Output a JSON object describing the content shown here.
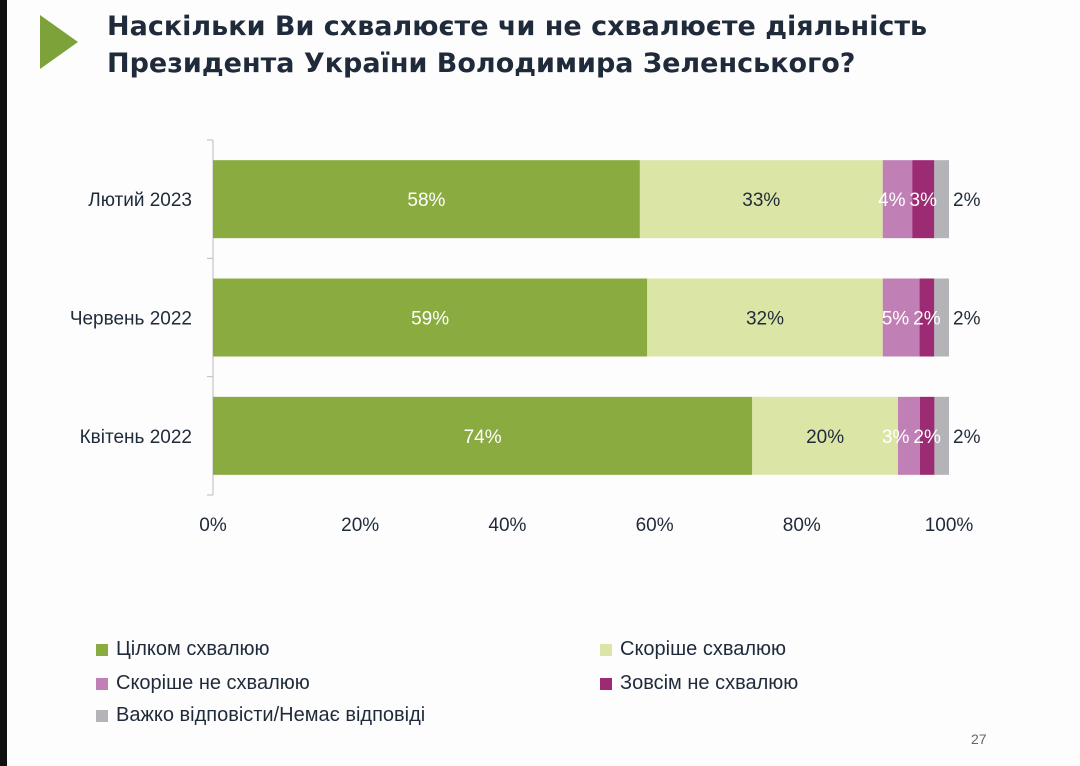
{
  "title_line1": "Наскільки Ви схвалюєте чи не схвалюєте діяльність",
  "title_line2": "Президента України Володимира Зеленського?",
  "page_number": "27",
  "chart_data": {
    "type": "bar",
    "orientation": "horizontal",
    "stacked": true,
    "categories": [
      "Лютий 2023",
      "Червень 2022",
      "Квітень 2022"
    ],
    "series": [
      {
        "name": "Цілком схвалюю",
        "color": "#8aab3f",
        "label_color": "#ffffff",
        "values": [
          58,
          59,
          74
        ]
      },
      {
        "name": "Скоріше схвалюю",
        "color": "#dbe6a6",
        "label_color": "#1f2a3a",
        "values": [
          33,
          32,
          20
        ]
      },
      {
        "name": "Скоріше не схвалюю",
        "color": "#c080b5",
        "label_color": "#ffffff",
        "values": [
          4,
          5,
          3
        ]
      },
      {
        "name": "Зовсім не схвалюю",
        "color": "#9b2c74",
        "label_color": "#ffffff",
        "values": [
          3,
          2,
          2
        ]
      },
      {
        "name": "Важко відповісти/Немає відповіді",
        "color": "#b3b3b8",
        "label_color": "#1f2a3a",
        "values": [
          2,
          2,
          2
        ]
      }
    ],
    "xlim": [
      0,
      100
    ],
    "xticks": [
      "0%",
      "20%",
      "40%",
      "60%",
      "80%",
      "100%"
    ],
    "grid": false,
    "legend_position": "bottom"
  }
}
